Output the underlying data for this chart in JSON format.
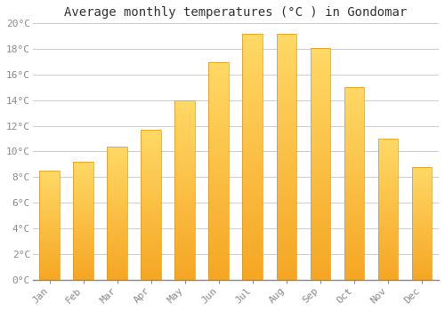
{
  "title": "Average monthly temperatures (°C ) in Gondomar",
  "months": [
    "Jan",
    "Feb",
    "Mar",
    "Apr",
    "May",
    "Jun",
    "Jul",
    "Aug",
    "Sep",
    "Oct",
    "Nov",
    "Dec"
  ],
  "values": [
    8.5,
    9.2,
    10.4,
    11.7,
    14.0,
    17.0,
    19.2,
    19.2,
    18.1,
    15.0,
    11.0,
    8.8
  ],
  "bar_color_bottom": "#F5A623",
  "bar_color_top": "#FFD966",
  "bar_edge_color": "#E8960A",
  "background_color": "#FFFFFF",
  "grid_color": "#CCCCCC",
  "ylim": [
    0,
    20
  ],
  "yticks": [
    0,
    2,
    4,
    6,
    8,
    10,
    12,
    14,
    16,
    18,
    20
  ],
  "title_fontsize": 10,
  "tick_fontsize": 8,
  "tick_color": "#888888",
  "figsize": [
    5.0,
    3.5
  ],
  "dpi": 100,
  "bar_width": 0.6
}
